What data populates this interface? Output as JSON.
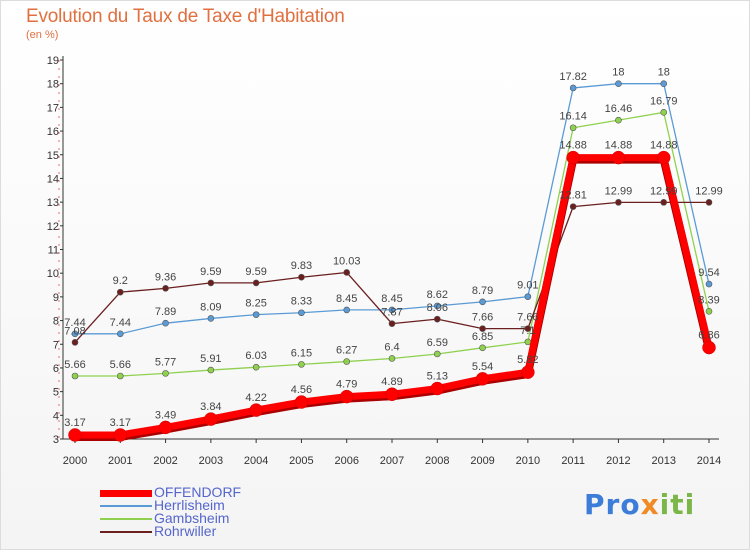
{
  "title": "Evolution du Taux de Taxe d'Habitation",
  "unit": "(en %)",
  "logo": {
    "part1": "Pro",
    "part2": "x",
    "part3": "iti"
  },
  "chart_data": {
    "type": "line",
    "title": "Evolution du Taux de Taxe d'Habitation",
    "ylabel": "(en %)",
    "x": [
      "2000",
      "2001",
      "2002",
      "2003",
      "2004",
      "2005",
      "2006",
      "2007",
      "2008",
      "2009",
      "2010",
      "2011",
      "2012",
      "2013",
      "2014"
    ],
    "ylim": [
      3,
      19
    ],
    "yticks": [
      "3",
      "4",
      "5",
      "6",
      "7",
      "8",
      "9",
      "10",
      "11",
      "12",
      "13",
      "14",
      "15",
      "16",
      "17",
      "18",
      "19"
    ],
    "grid": false,
    "legend_position": "bottom-left",
    "series": [
      {
        "name": "OFFENDORF",
        "color": "#ff0000",
        "values": [
          3.17,
          3.17,
          3.49,
          3.84,
          4.22,
          4.56,
          4.79,
          4.89,
          5.13,
          5.54,
          5.82,
          14.88,
          14.88,
          14.88,
          6.86
        ],
        "labels": [
          "3.17",
          "3.17",
          "3.49",
          "3.84",
          "4.22",
          "4.56",
          "4.79",
          "4.89",
          "5.13",
          "5.54",
          "5.82",
          "14.88",
          "14.88",
          "14.88",
          "6.86"
        ]
      },
      {
        "name": "Herrlisheim",
        "color": "#5b9bd5",
        "values": [
          7.44,
          7.44,
          7.89,
          8.09,
          8.25,
          8.33,
          8.45,
          8.45,
          8.62,
          8.79,
          9.01,
          17.82,
          18,
          18,
          9.54
        ],
        "labels": [
          "7.44",
          "7.44",
          "7.89",
          "8.09",
          "8.25",
          "8.33",
          "8.45",
          "8.45",
          "8.62",
          "8.79",
          "9.01",
          "17.82",
          "18",
          "18",
          "9.54"
        ]
      },
      {
        "name": "Gambsheim",
        "color": "#8fd14f",
        "values": [
          5.66,
          5.66,
          5.77,
          5.91,
          6.03,
          6.15,
          6.27,
          6.4,
          6.59,
          6.85,
          7.1,
          16.14,
          16.46,
          16.79,
          8.39
        ],
        "labels": [
          "5.66",
          "5.66",
          "5.77",
          "5.91",
          "6.03",
          "6.15",
          "6.27",
          "6.4",
          "6.59",
          "6.85",
          "7.1",
          "16.14",
          "16.46",
          "16.79",
          "8.39"
        ]
      },
      {
        "name": "Rohrwiller",
        "color": "#6b1f1f",
        "values": [
          7.08,
          9.2,
          9.36,
          9.59,
          9.59,
          9.83,
          10.03,
          7.87,
          8.06,
          7.66,
          7.66,
          12.81,
          12.99,
          12.99,
          12.99
        ],
        "labels": [
          "7.08",
          "9.2",
          "9.36",
          "9.59",
          "9.59",
          "9.83",
          "10.03",
          "7.87",
          "8.06",
          "7.66",
          "7.66",
          "12.81",
          "12.99",
          "12.99",
          "12.99"
        ]
      }
    ]
  }
}
